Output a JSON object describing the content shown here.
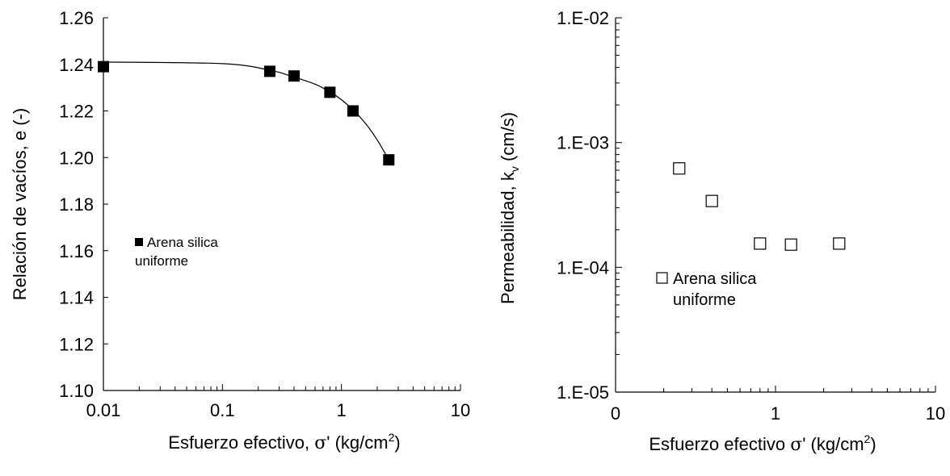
{
  "chart_data": [
    {
      "type": "scatter",
      "x_scale": "log",
      "xlabel": "Esfuerzo efectivo, σ' (kg/cm²)",
      "xlabel_parts": {
        "main": "Esfuerzo efectivo, ",
        "sigma": "σ",
        "rest": "' (kg/cm",
        "sup": "2",
        "close": ")"
      },
      "ylabel": "Relación de vacíos, e (-)",
      "xlim": [
        0.01,
        10
      ],
      "ylim": [
        1.1,
        1.26
      ],
      "x_tick_labels": [
        "0.01",
        "0.1",
        "1",
        "10"
      ],
      "y_tick_labels": [
        "1.10",
        "1.12",
        "1.14",
        "1.16",
        "1.18",
        "1.20",
        "1.22",
        "1.24",
        "1.26"
      ],
      "grid": false,
      "legend_position": "center-left",
      "series": [
        {
          "name": "Arena silica uniforme",
          "name_lines": [
            "Arena silica",
            "uniforme"
          ],
          "marker": "filled-square",
          "color": "#000000",
          "x": [
            0.01,
            0.25,
            0.4,
            0.8,
            1.25,
            2.5
          ],
          "y": [
            1.239,
            1.237,
            1.235,
            1.228,
            1.22,
            1.199
          ]
        }
      ],
      "trend_line": {
        "x": [
          0.01,
          0.1,
          0.25,
          0.4,
          0.6,
          0.8,
          1.0,
          1.25,
          1.6,
          2.0,
          2.5
        ],
        "y": [
          1.241,
          1.2403,
          1.2375,
          1.2345,
          1.2315,
          1.2282,
          1.2248,
          1.2205,
          1.2145,
          1.2075,
          1.199
        ]
      }
    },
    {
      "type": "scatter",
      "x_scale": "log",
      "y_scale": "log",
      "xlabel": "Esfuerzo efectivo σ' (kg/cm²)",
      "xlabel_parts": {
        "main": "Esfuerzo efectivo ",
        "sigma": "σ",
        "rest": "' (kg/cm",
        "sup": "2",
        "close": ")"
      },
      "ylabel": "Permeabilidad, kv (cm/s)",
      "ylabel_parts": {
        "main": "Permeabilidad, k",
        "sub": "v",
        "rest": " (cm/s)"
      },
      "xlim": [
        0.1,
        10
      ],
      "ylim": [
        1e-05,
        0.01
      ],
      "x_tick_labels": [
        "0",
        "1",
        "10"
      ],
      "y_tick_labels": [
        "1.E-05",
        "1.E-04",
        "1.E-03",
        "1.E-02"
      ],
      "grid": false,
      "legend_position": "center-left",
      "series": [
        {
          "name": "Arena silica uniforme",
          "name_lines": [
            "Arena silica",
            "uniforme"
          ],
          "marker": "open-square",
          "color": "#000000",
          "x": [
            0.25,
            0.4,
            0.8,
            1.25,
            2.5
          ],
          "y": [
            0.00062,
            0.00034,
            0.000155,
            0.000152,
            0.000155
          ]
        }
      ]
    }
  ]
}
